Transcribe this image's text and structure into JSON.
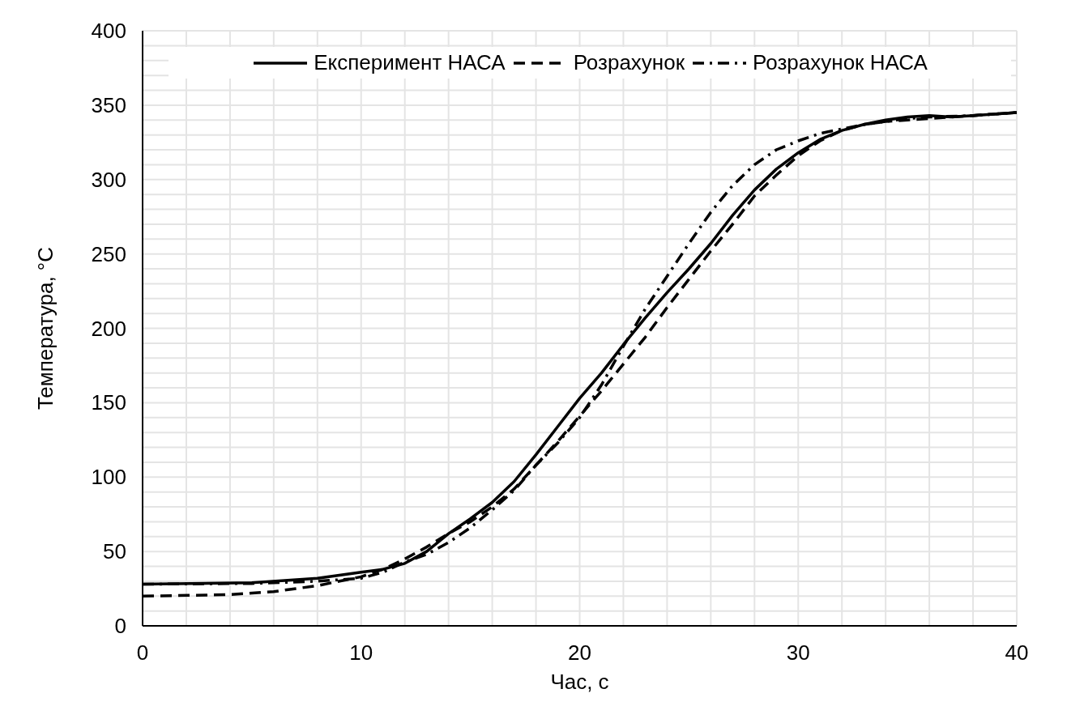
{
  "chart_data": {
    "type": "line",
    "xlabel": "Час, с",
    "ylabel": "Температура, °С",
    "xlim": [
      0,
      40
    ],
    "ylim": [
      0,
      400
    ],
    "xticks": [
      0,
      {
        "value": 2,
        "label": null
      },
      {
        "value": 4,
        "label": null
      },
      {
        "value": 6,
        "label": null
      },
      {
        "value": 8,
        "label": null
      },
      10,
      {
        "value": 12,
        "label": null
      },
      {
        "value": 14,
        "label": null
      },
      {
        "value": 16,
        "label": null
      },
      {
        "value": 18,
        "label": null
      },
      20,
      {
        "value": 22,
        "label": null
      },
      {
        "value": 24,
        "label": null
      },
      {
        "value": 26,
        "label": null
      },
      {
        "value": 28,
        "label": null
      },
      30,
      {
        "value": 32,
        "label": null
      },
      {
        "value": 34,
        "label": null
      },
      {
        "value": 36,
        "label": null
      },
      {
        "value": 38,
        "label": null
      },
      40
    ],
    "yticks": [
      0,
      {
        "value": 10,
        "label": null
      },
      {
        "value": 20,
        "label": null
      },
      {
        "value": 30,
        "label": null
      },
      {
        "value": 40,
        "label": null
      },
      50,
      {
        "value": 60,
        "label": null
      },
      {
        "value": 70,
        "label": null
      },
      {
        "value": 80,
        "label": null
      },
      {
        "value": 90,
        "label": null
      },
      100,
      {
        "value": 110,
        "label": null
      },
      {
        "value": 120,
        "label": null
      },
      {
        "value": 130,
        "label": null
      },
      {
        "value": 140,
        "label": null
      },
      150,
      {
        "value": 160,
        "label": null
      },
      {
        "value": 170,
        "label": null
      },
      {
        "value": 180,
        "label": null
      },
      {
        "value": 190,
        "label": null
      },
      200,
      {
        "value": 210,
        "label": null
      },
      {
        "value": 220,
        "label": null
      },
      {
        "value": 230,
        "label": null
      },
      {
        "value": 240,
        "label": null
      },
      250,
      {
        "value": 260,
        "label": null
      },
      {
        "value": 270,
        "label": null
      },
      {
        "value": 280,
        "label": null
      },
      {
        "value": 290,
        "label": null
      },
      300,
      {
        "value": 310,
        "label": null
      },
      {
        "value": 320,
        "label": null
      },
      {
        "value": 330,
        "label": null
      },
      {
        "value": 340,
        "label": null
      },
      350,
      {
        "value": 360,
        "label": null
      },
      {
        "value": 370,
        "label": null
      },
      {
        "value": 380,
        "label": null
      },
      {
        "value": 390,
        "label": null
      },
      400
    ],
    "grid": true,
    "legend": "top",
    "marker": "none",
    "series": [
      {
        "name": "Експеримент НАСА",
        "color": "#000000",
        "line_style": "solid",
        "x": [
          0,
          5,
          8,
          10,
          11,
          12,
          13,
          14,
          15,
          16,
          17,
          18,
          19,
          20,
          21,
          22,
          23,
          24,
          25,
          26,
          27,
          28,
          29,
          30,
          31,
          32,
          33,
          34,
          35,
          36,
          37,
          38,
          40
        ],
        "values": [
          28,
          29,
          32,
          36,
          38,
          42,
          50,
          62,
          72,
          83,
          97,
          115,
          134,
          153,
          170,
          189,
          207,
          224,
          240,
          257,
          276,
          293,
          307,
          318,
          327,
          333,
          337,
          340,
          342,
          343,
          342,
          343,
          345
        ]
      },
      {
        "name": "Розрахунок",
        "color": "#000000",
        "line_style": "dashed",
        "x": [
          0,
          4,
          6,
          8,
          10,
          11,
          12,
          13,
          14,
          15,
          16,
          17,
          18,
          19,
          20,
          21,
          22,
          23,
          24,
          25,
          26,
          27,
          28,
          29,
          30,
          31,
          32,
          33,
          34,
          35,
          36,
          38,
          40
        ],
        "values": [
          20,
          21,
          23,
          27,
          33,
          38,
          45,
          53,
          62,
          70,
          80,
          92,
          108,
          124,
          141,
          158,
          176,
          194,
          214,
          233,
          252,
          270,
          289,
          303,
          316,
          326,
          333,
          337,
          339,
          340,
          341,
          343,
          345
        ]
      },
      {
        "name": "Розрахунок НАСА",
        "color": "#000000",
        "line_style": "dashdot",
        "x": [
          0,
          5,
          8,
          10,
          11,
          12,
          13,
          14,
          15,
          16,
          17,
          18,
          19,
          20,
          21,
          22,
          23,
          24,
          25,
          26,
          27,
          28,
          29,
          30,
          31,
          32,
          33,
          34,
          35,
          36,
          38,
          40
        ],
        "values": [
          28,
          28.5,
          30,
          32,
          36,
          43,
          48,
          56,
          66,
          78,
          91,
          108,
          123,
          140,
          162,
          188,
          213,
          235,
          257,
          278,
          296,
          310,
          320,
          326,
          331,
          334,
          337,
          339,
          341,
          342,
          343,
          345
        ]
      }
    ]
  }
}
